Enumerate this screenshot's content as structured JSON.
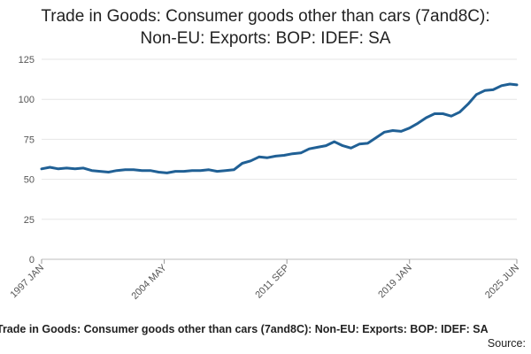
{
  "chart_data": {
    "type": "line",
    "title_lines": [
      "Trade in Goods: Consumer goods other than cars (7and8C):",
      "Non-EU: Exports: BOP: IDEF: SA"
    ],
    "footer_title": "Trade in Goods: Consumer goods other than cars (7and8C): Non-EU: Exports: BOP: IDEF: SA",
    "source_label": "Source:",
    "x_ticks": [
      "1997 JAN",
      "2004 MAY",
      "2011 SEP",
      "2019 JAN",
      "2025 JUN"
    ],
    "y_ticks": [
      "0",
      "25",
      "50",
      "75",
      "100",
      "125"
    ],
    "ylim": [
      0,
      125
    ],
    "xlim": [
      "1997-01",
      "2025-06"
    ],
    "grid": "horizontal",
    "legend": "none",
    "series_color": "#206095",
    "series": [
      {
        "points": [
          [
            "1997-01",
            56.5
          ],
          [
            "1997-07",
            57.5
          ],
          [
            "1998-01",
            56.5
          ],
          [
            "1998-07",
            57.0
          ],
          [
            "1999-01",
            56.5
          ],
          [
            "1999-07",
            57.0
          ],
          [
            "2000-01",
            55.5
          ],
          [
            "2000-07",
            55.0
          ],
          [
            "2001-01",
            54.5
          ],
          [
            "2001-07",
            55.5
          ],
          [
            "2002-01",
            56.0
          ],
          [
            "2002-07",
            56.0
          ],
          [
            "2003-01",
            55.5
          ],
          [
            "2003-07",
            55.5
          ],
          [
            "2004-01",
            54.5
          ],
          [
            "2004-07",
            54.0
          ],
          [
            "2005-01",
            55.0
          ],
          [
            "2005-07",
            55.0
          ],
          [
            "2006-01",
            55.5
          ],
          [
            "2006-07",
            55.5
          ],
          [
            "2007-01",
            56.0
          ],
          [
            "2007-07",
            55.0
          ],
          [
            "2008-01",
            55.5
          ],
          [
            "2008-07",
            56.0
          ],
          [
            "2009-01",
            60.0
          ],
          [
            "2009-07",
            61.5
          ],
          [
            "2010-01",
            64.0
          ],
          [
            "2010-07",
            63.5
          ],
          [
            "2011-01",
            64.5
          ],
          [
            "2011-07",
            65.0
          ],
          [
            "2012-01",
            66.0
          ],
          [
            "2012-07",
            66.5
          ],
          [
            "2013-01",
            69.0
          ],
          [
            "2013-07",
            70.0
          ],
          [
            "2014-01",
            71.0
          ],
          [
            "2014-07",
            73.5
          ],
          [
            "2015-01",
            71.0
          ],
          [
            "2015-07",
            69.5
          ],
          [
            "2016-01",
            72.0
          ],
          [
            "2016-07",
            72.5
          ],
          [
            "2017-01",
            76.0
          ],
          [
            "2017-07",
            79.5
          ],
          [
            "2018-01",
            80.5
          ],
          [
            "2018-07",
            80.0
          ],
          [
            "2019-01",
            82.0
          ],
          [
            "2019-07",
            85.0
          ],
          [
            "2020-01",
            88.5
          ],
          [
            "2020-07",
            91.0
          ],
          [
            "2021-01",
            91.0
          ],
          [
            "2021-07",
            89.5
          ],
          [
            "2022-01",
            92.0
          ],
          [
            "2022-07",
            97.0
          ],
          [
            "2023-01",
            103.0
          ],
          [
            "2023-07",
            105.5
          ],
          [
            "2024-01",
            106.0
          ],
          [
            "2024-07",
            108.5
          ],
          [
            "2025-01",
            109.5
          ],
          [
            "2025-06",
            109.0
          ]
        ]
      }
    ]
  }
}
